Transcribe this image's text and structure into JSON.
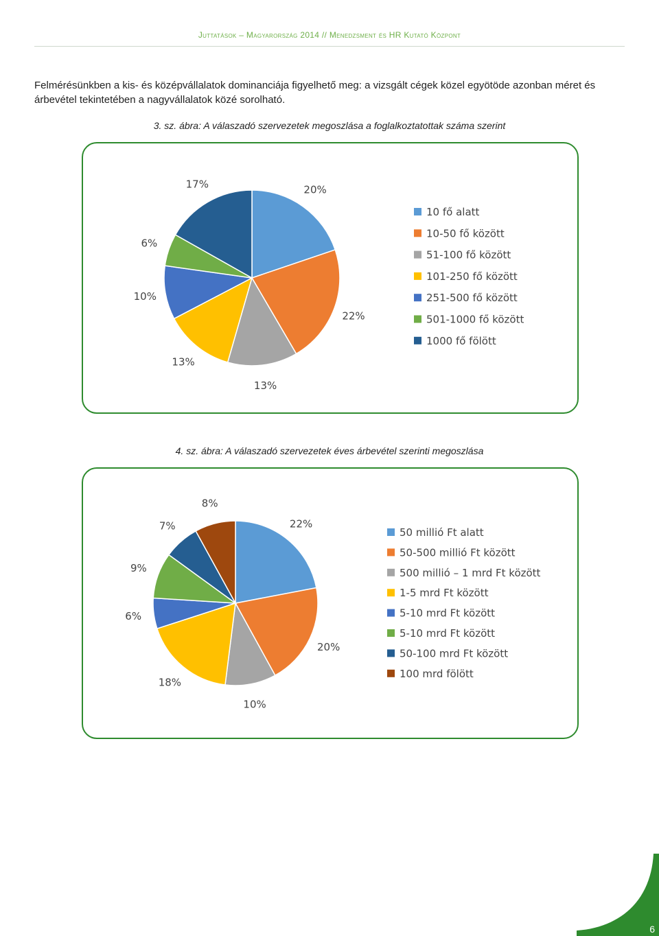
{
  "header": {
    "left": "Juttatások – Magyarország 2014",
    "sep": "//",
    "right": "Menedzsment és HR Kutató Központ"
  },
  "intro_text": "Felmérésünkben a kis- és középvállalatok dominanciája figyelhető meg: a vizsgált cégek közel egyötöde azonban méret és árbevétel tekintetében a nagyvállalatok közé sorolható.",
  "page_number": "6",
  "colors": {
    "accent_green": "#2e8b2e",
    "header_green": "#6fb04a"
  },
  "chart_data": [
    {
      "type": "pie",
      "caption": "3. sz. ábra: A válaszadó szervezetek megoszlása a foglalkoztatottak száma szerint",
      "legend_position": "right",
      "slices": [
        {
          "label": "10 fő alatt",
          "value": 20,
          "display": "20%",
          "color": "#5b9bd5"
        },
        {
          "label": "10-50 fő között",
          "value": 22,
          "display": "22%",
          "color": "#ed7d31"
        },
        {
          "label": "51-100 fő között",
          "value": 13,
          "display": "13%",
          "color": "#a5a5a5"
        },
        {
          "label": "101-250 fő között",
          "value": 13,
          "display": "13%",
          "color": "#ffc000"
        },
        {
          "label": "251-500 fő között",
          "value": 10,
          "display": "10%",
          "color": "#4472c4"
        },
        {
          "label": "501-1000 fő között",
          "value": 6,
          "display": "6%",
          "color": "#70ad47"
        },
        {
          "label": "1000 fő fölött",
          "value": 17,
          "display": "17%",
          "color": "#255e91"
        }
      ]
    },
    {
      "type": "pie",
      "caption": "4. sz. ábra: A válaszadó szervezetek éves árbevétel szerinti megoszlása",
      "legend_position": "right",
      "slices": [
        {
          "label": "50 millió Ft alatt",
          "value": 22,
          "display": "22%",
          "color": "#5b9bd5"
        },
        {
          "label": "50-500 millió Ft között",
          "value": 20,
          "display": "20%",
          "color": "#ed7d31"
        },
        {
          "label": "500 millió – 1 mrd Ft között",
          "value": 10,
          "display": "10%",
          "color": "#a5a5a5"
        },
        {
          "label": "1-5 mrd Ft között",
          "value": 18,
          "display": "18%",
          "color": "#ffc000"
        },
        {
          "label": "5-10 mrd Ft között",
          "value": 6,
          "display": "6%",
          "color": "#4472c4"
        },
        {
          "label": "5-10 mrd Ft között",
          "value": 9,
          "display": "9%",
          "color": "#70ad47"
        },
        {
          "label": "50-100 mrd Ft között",
          "value": 7,
          "display": "7%",
          "color": "#255e91"
        },
        {
          "label": "100 mrd fölött",
          "value": 8,
          "display": "8%",
          "color": "#9e480e"
        }
      ]
    }
  ]
}
